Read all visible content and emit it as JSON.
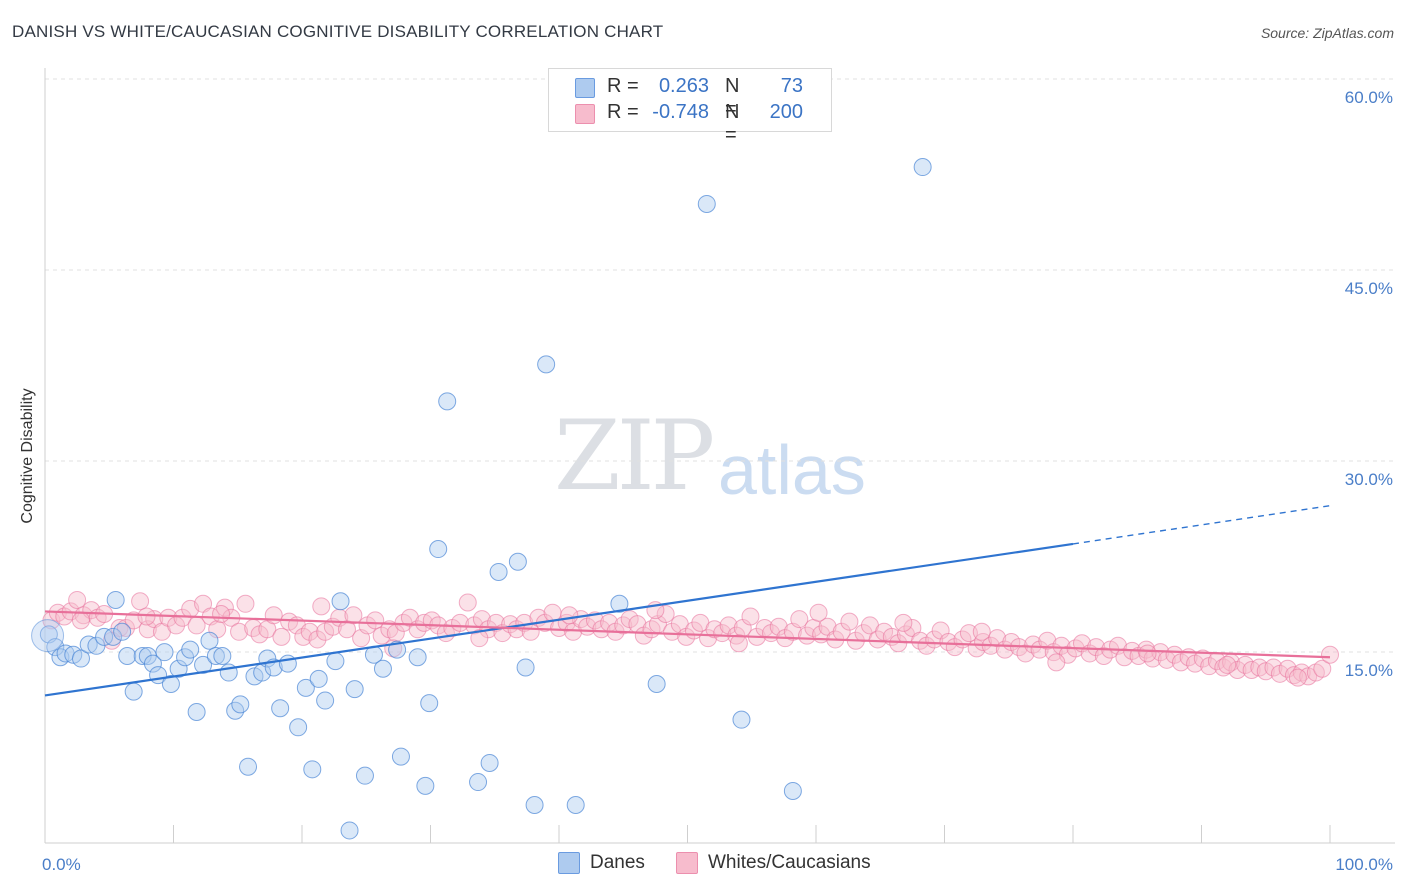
{
  "header": {
    "title": "DANISH VS WHITE/CAUCASIAN COGNITIVE DISABILITY CORRELATION CHART",
    "source": "Source: ZipAtlas.com"
  },
  "watermark": {
    "zip": "ZIP",
    "atlas": "atlas"
  },
  "legend": {
    "rows": [
      {
        "r_label": "R =",
        "r_value": "0.263",
        "n_label": "N =",
        "n_value": "73",
        "color": "#aecbef"
      },
      {
        "r_label": "R =",
        "r_value": "-0.748",
        "n_label": "N =",
        "n_value": "200",
        "color": "#f7bccd"
      }
    ]
  },
  "bottom_legend": {
    "danes": "Danes",
    "whites": "Whites/Caucasians"
  },
  "chart_data": {
    "type": "scatter",
    "ylabel": "Cognitive Disability",
    "xlim": [
      0,
      100
    ],
    "ylim": [
      0,
      62
    ],
    "y_ticks": [
      15,
      30,
      45,
      60
    ],
    "y_tick_labels": [
      "15.0%",
      "30.0%",
      "45.0%",
      "60.0%"
    ],
    "x_tick_labels": [
      "0.0%",
      "100.0%"
    ],
    "grid": "horizontal dashed",
    "colors": {
      "danes": "#4a86d6",
      "danes_fill": "#aecbef",
      "whites": "#e8709a",
      "whites_fill": "#f7bccd"
    },
    "series": [
      {
        "name": "Danes",
        "trend": {
          "x0": 0,
          "y0": 13.0,
          "x1": 80,
          "y1": 24.9,
          "dashed_to": 100,
          "dashed_y": 27.9
        },
        "points": [
          [
            0.3,
            17.8
          ],
          [
            0.8,
            16.8
          ],
          [
            1.2,
            16.0
          ],
          [
            1.6,
            16.3
          ],
          [
            2.2,
            16.2
          ],
          [
            2.8,
            15.9
          ],
          [
            3.4,
            17.0
          ],
          [
            4.0,
            16.9
          ],
          [
            4.6,
            17.6
          ],
          [
            5.3,
            17.6
          ],
          [
            5.5,
            20.5
          ],
          [
            6.0,
            18.0
          ],
          [
            6.4,
            16.1
          ],
          [
            6.9,
            13.3
          ],
          [
            7.6,
            16.1
          ],
          [
            8.0,
            16.1
          ],
          [
            8.4,
            15.5
          ],
          [
            8.8,
            14.6
          ],
          [
            9.3,
            16.4
          ],
          [
            9.8,
            13.9
          ],
          [
            10.4,
            15.1
          ],
          [
            10.9,
            16.0
          ],
          [
            11.3,
            16.6
          ],
          [
            11.8,
            11.7
          ],
          [
            12.3,
            15.4
          ],
          [
            12.8,
            17.3
          ],
          [
            13.3,
            16.1
          ],
          [
            13.8,
            16.1
          ],
          [
            14.3,
            14.8
          ],
          [
            14.8,
            11.8
          ],
          [
            15.2,
            12.3
          ],
          [
            15.8,
            7.4
          ],
          [
            16.3,
            14.5
          ],
          [
            16.9,
            14.8
          ],
          [
            17.3,
            15.9
          ],
          [
            17.8,
            15.2
          ],
          [
            18.3,
            12.0
          ],
          [
            18.9,
            15.5
          ],
          [
            19.7,
            10.5
          ],
          [
            20.3,
            13.6
          ],
          [
            20.8,
            7.2
          ],
          [
            21.3,
            14.3
          ],
          [
            21.8,
            12.6
          ],
          [
            22.6,
            15.7
          ],
          [
            23.0,
            20.4
          ],
          [
            23.7,
            2.4
          ],
          [
            24.1,
            13.5
          ],
          [
            24.9,
            6.7
          ],
          [
            25.6,
            16.2
          ],
          [
            26.3,
            15.1
          ],
          [
            27.4,
            16.6
          ],
          [
            27.7,
            8.2
          ],
          [
            29.0,
            16.0
          ],
          [
            29.6,
            5.9
          ],
          [
            29.9,
            12.4
          ],
          [
            30.6,
            24.5
          ],
          [
            31.3,
            36.1
          ],
          [
            33.7,
            6.2
          ],
          [
            34.6,
            7.7
          ],
          [
            35.3,
            22.7
          ],
          [
            36.8,
            23.5
          ],
          [
            37.4,
            15.2
          ],
          [
            38.1,
            4.4
          ],
          [
            39.0,
            39.0
          ],
          [
            41.3,
            4.4
          ],
          [
            44.7,
            20.2
          ],
          [
            47.6,
            13.9
          ],
          [
            51.5,
            51.6
          ],
          [
            54.2,
            11.1
          ],
          [
            58.2,
            5.5
          ],
          [
            68.3,
            54.5
          ]
        ]
      },
      {
        "name": "Whites/Caucasians",
        "trend": {
          "x0": 0,
          "y0": 19.6,
          "x1": 100,
          "y1": 16.0
        },
        "points": [
          [
            0.5,
            18.9
          ],
          [
            1.0,
            19.5
          ],
          [
            1.5,
            19.2
          ],
          [
            2.0,
            19.6
          ],
          [
            2.5,
            20.5
          ],
          [
            3.0,
            19.3
          ],
          [
            3.6,
            19.7
          ],
          [
            4.1,
            19.1
          ],
          [
            4.6,
            19.4
          ],
          [
            5.2,
            17.3
          ],
          [
            5.8,
            18.3
          ],
          [
            6.3,
            18.3
          ],
          [
            6.9,
            18.9
          ],
          [
            7.4,
            20.4
          ],
          [
            8.0,
            18.2
          ],
          [
            8.5,
            19.0
          ],
          [
            9.1,
            18.0
          ],
          [
            9.6,
            19.1
          ],
          [
            10.2,
            18.5
          ],
          [
            10.7,
            19.1
          ],
          [
            11.3,
            19.8
          ],
          [
            11.8,
            18.5
          ],
          [
            12.3,
            20.2
          ],
          [
            12.9,
            19.2
          ],
          [
            13.4,
            18.2
          ],
          [
            14.0,
            19.9
          ],
          [
            14.5,
            19.1
          ],
          [
            15.1,
            18.0
          ],
          [
            15.6,
            20.2
          ],
          [
            16.2,
            18.3
          ],
          [
            16.7,
            17.8
          ],
          [
            17.3,
            18.2
          ],
          [
            17.8,
            19.3
          ],
          [
            18.4,
            17.6
          ],
          [
            19.0,
            18.8
          ],
          [
            19.6,
            18.5
          ],
          [
            20.1,
            17.6
          ],
          [
            20.6,
            18.0
          ],
          [
            21.2,
            17.4
          ],
          [
            21.8,
            18.0
          ],
          [
            22.4,
            18.4
          ],
          [
            22.9,
            19.1
          ],
          [
            23.5,
            18.2
          ],
          [
            24.0,
            19.3
          ],
          [
            24.6,
            17.5
          ],
          [
            25.1,
            18.5
          ],
          [
            25.7,
            18.9
          ],
          [
            26.2,
            17.7
          ],
          [
            26.8,
            18.2
          ],
          [
            27.3,
            17.9
          ],
          [
            27.9,
            18.7
          ],
          [
            28.4,
            19.1
          ],
          [
            29.0,
            18.2
          ],
          [
            29.5,
            18.7
          ],
          [
            30.1,
            18.9
          ],
          [
            30.6,
            18.5
          ],
          [
            31.2,
            17.9
          ],
          [
            31.7,
            18.3
          ],
          [
            32.3,
            18.7
          ],
          [
            32.9,
            20.3
          ],
          [
            33.4,
            18.5
          ],
          [
            34.0,
            19.0
          ],
          [
            34.5,
            18.2
          ],
          [
            35.1,
            18.7
          ],
          [
            35.6,
            17.9
          ],
          [
            36.2,
            18.6
          ],
          [
            36.7,
            18.2
          ],
          [
            37.3,
            18.7
          ],
          [
            37.8,
            18.0
          ],
          [
            38.4,
            19.1
          ],
          [
            38.9,
            18.7
          ],
          [
            39.5,
            19.5
          ],
          [
            40.0,
            18.3
          ],
          [
            40.6,
            18.7
          ],
          [
            41.1,
            18.0
          ],
          [
            41.7,
            19.0
          ],
          [
            42.2,
            18.4
          ],
          [
            42.8,
            18.9
          ],
          [
            43.3,
            18.2
          ],
          [
            43.9,
            18.7
          ],
          [
            44.4,
            18.0
          ],
          [
            45.0,
            18.5
          ],
          [
            45.5,
            19.0
          ],
          [
            46.1,
            18.6
          ],
          [
            46.6,
            17.7
          ],
          [
            47.2,
            18.2
          ],
          [
            47.7,
            18.6
          ],
          [
            48.3,
            19.4
          ],
          [
            48.8,
            18.0
          ],
          [
            49.4,
            18.6
          ],
          [
            49.9,
            17.6
          ],
          [
            50.5,
            18.1
          ],
          [
            51.0,
            18.7
          ],
          [
            51.6,
            17.5
          ],
          [
            52.1,
            18.2
          ],
          [
            52.7,
            17.9
          ],
          [
            53.2,
            18.5
          ],
          [
            53.8,
            17.7
          ],
          [
            54.3,
            18.3
          ],
          [
            54.9,
            19.2
          ],
          [
            55.4,
            17.6
          ],
          [
            56.0,
            18.3
          ],
          [
            56.5,
            17.9
          ],
          [
            57.1,
            18.4
          ],
          [
            57.6,
            17.5
          ],
          [
            58.2,
            18.0
          ],
          [
            58.7,
            19.0
          ],
          [
            59.3,
            17.7
          ],
          [
            59.8,
            18.3
          ],
          [
            60.4,
            17.8
          ],
          [
            60.9,
            18.4
          ],
          [
            61.5,
            17.4
          ],
          [
            62.0,
            18.0
          ],
          [
            62.6,
            18.8
          ],
          [
            63.1,
            17.3
          ],
          [
            63.7,
            17.9
          ],
          [
            64.2,
            18.5
          ],
          [
            64.8,
            17.4
          ],
          [
            65.3,
            18.0
          ],
          [
            65.9,
            17.6
          ],
          [
            66.4,
            17.1
          ],
          [
            67.0,
            17.8
          ],
          [
            67.5,
            18.3
          ],
          [
            68.1,
            17.3
          ],
          [
            68.6,
            16.9
          ],
          [
            69.2,
            17.4
          ],
          [
            69.7,
            18.1
          ],
          [
            70.3,
            17.2
          ],
          [
            70.8,
            16.8
          ],
          [
            71.4,
            17.4
          ],
          [
            71.9,
            17.9
          ],
          [
            72.5,
            16.7
          ],
          [
            73.0,
            17.2
          ],
          [
            73.6,
            16.9
          ],
          [
            74.1,
            17.5
          ],
          [
            74.7,
            16.6
          ],
          [
            75.2,
            17.2
          ],
          [
            75.8,
            16.8
          ],
          [
            76.3,
            16.3
          ],
          [
            76.9,
            17.0
          ],
          [
            77.4,
            16.6
          ],
          [
            78.0,
            17.3
          ],
          [
            78.5,
            16.4
          ],
          [
            79.1,
            16.9
          ],
          [
            79.6,
            16.2
          ],
          [
            80.2,
            16.7
          ],
          [
            80.7,
            17.1
          ],
          [
            81.3,
            16.3
          ],
          [
            81.8,
            16.8
          ],
          [
            82.4,
            16.1
          ],
          [
            82.9,
            16.6
          ],
          [
            83.5,
            16.9
          ],
          [
            84.0,
            16.0
          ],
          [
            84.6,
            16.5
          ],
          [
            85.1,
            16.1
          ],
          [
            85.7,
            16.6
          ],
          [
            86.2,
            15.9
          ],
          [
            86.8,
            16.4
          ],
          [
            87.3,
            15.8
          ],
          [
            87.9,
            16.2
          ],
          [
            88.4,
            15.6
          ],
          [
            89.0,
            16.0
          ],
          [
            89.5,
            15.5
          ],
          [
            90.1,
            15.9
          ],
          [
            90.6,
            15.3
          ],
          [
            91.2,
            15.7
          ],
          [
            91.7,
            15.2
          ],
          [
            92.3,
            15.6
          ],
          [
            92.8,
            15.0
          ],
          [
            93.4,
            15.4
          ],
          [
            93.9,
            15.0
          ],
          [
            94.5,
            15.2
          ],
          [
            95.0,
            14.9
          ],
          [
            95.6,
            15.2
          ],
          [
            96.1,
            14.7
          ],
          [
            96.7,
            15.1
          ],
          [
            97.2,
            14.6
          ],
          [
            97.8,
            14.8
          ],
          [
            98.3,
            14.5
          ],
          [
            98.9,
            14.8
          ],
          [
            99.4,
            15.1
          ],
          [
            100.0,
            16.2
          ],
          [
            2.8,
            18.9
          ],
          [
            7.9,
            19.2
          ],
          [
            13.7,
            19.4
          ],
          [
            21.5,
            20.0
          ],
          [
            27.1,
            16.7
          ],
          [
            33.8,
            17.5
          ],
          [
            40.8,
            19.3
          ],
          [
            47.5,
            19.7
          ],
          [
            54.0,
            17.1
          ],
          [
            60.2,
            19.5
          ],
          [
            66.8,
            18.7
          ],
          [
            72.9,
            18.0
          ],
          [
            78.7,
            15.6
          ],
          [
            85.8,
            16.3
          ],
          [
            92.0,
            15.4
          ],
          [
            97.5,
            14.4
          ]
        ]
      }
    ]
  }
}
